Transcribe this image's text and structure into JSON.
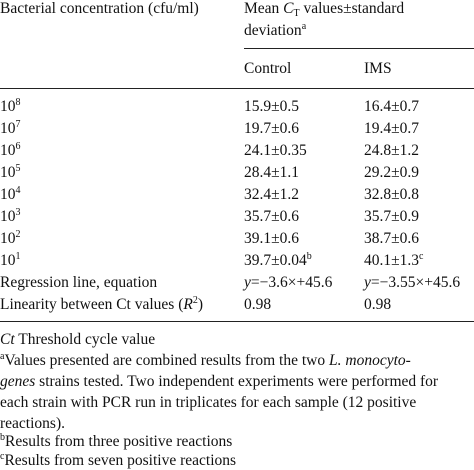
{
  "header": {
    "col1": "Bacterial concentration (cfu/ml)",
    "col2_line1_pre": "Mean ",
    "col2_C": "C",
    "col2_T": "T",
    "col2_line1_post": " values±standard",
    "col2_line2": "deviation",
    "col2_line2_sup": "a",
    "sub_control": "Control",
    "sub_ims": "IMS"
  },
  "rows": [
    {
      "base": "10",
      "exp": "8",
      "control": "15.9±0.5",
      "control_sup": "",
      "ims": "16.4±0.7",
      "ims_sup": ""
    },
    {
      "base": "10",
      "exp": "7",
      "control": "19.7±0.6",
      "control_sup": "",
      "ims": "19.4±0.7",
      "ims_sup": ""
    },
    {
      "base": "10",
      "exp": "6",
      "control": "24.1±0.35",
      "control_sup": "",
      "ims": "24.8±1.2",
      "ims_sup": ""
    },
    {
      "base": "10",
      "exp": "5",
      "control": "28.4±1.1",
      "control_sup": "",
      "ims": "29.2±0.9",
      "ims_sup": ""
    },
    {
      "base": "10",
      "exp": "4",
      "control": "32.4±1.2",
      "control_sup": "",
      "ims": "32.8±0.8",
      "ims_sup": ""
    },
    {
      "base": "10",
      "exp": "3",
      "control": "35.7±0.6",
      "control_sup": "",
      "ims": "35.7±0.9",
      "ims_sup": ""
    },
    {
      "base": "10",
      "exp": "2",
      "control": "39.1±0.6",
      "control_sup": "",
      "ims": "38.7±0.6",
      "ims_sup": ""
    },
    {
      "base": "10",
      "exp": "1",
      "control": "39.7±0.04",
      "control_sup": "b",
      "ims": "40.1±1.3",
      "ims_sup": "c"
    }
  ],
  "regression": {
    "label": "Regression line, equation",
    "control_y": "y",
    "control_rest": "=−3.6×+45.6",
    "ims_y": "y",
    "ims_rest": "=−3.55×+45.6"
  },
  "linearity": {
    "label_pre": "Linearity between Ct values (",
    "label_R": "R",
    "label_sup": "2",
    "label_post": ")",
    "control": "0.98",
    "ims": "0.98"
  },
  "footnotes": {
    "ct_abbr": "Ct",
    "ct_text": " Threshold cycle value",
    "a_mark": "a",
    "a_line1_pre": "Values presented are combined results from the two ",
    "a_line1_it": "L. monocyto-",
    "a_line2_it": "genes",
    "a_line2_post": " strains tested. Two independent experiments were performed for",
    "a_line3": "each strain with PCR run in triplicates for each sample (12 positive",
    "a_line4": "reactions).",
    "b_mark": "b",
    "b_text": "Results from three positive reactions",
    "c_mark": "c",
    "c_text": "Results from seven positive reactions"
  }
}
